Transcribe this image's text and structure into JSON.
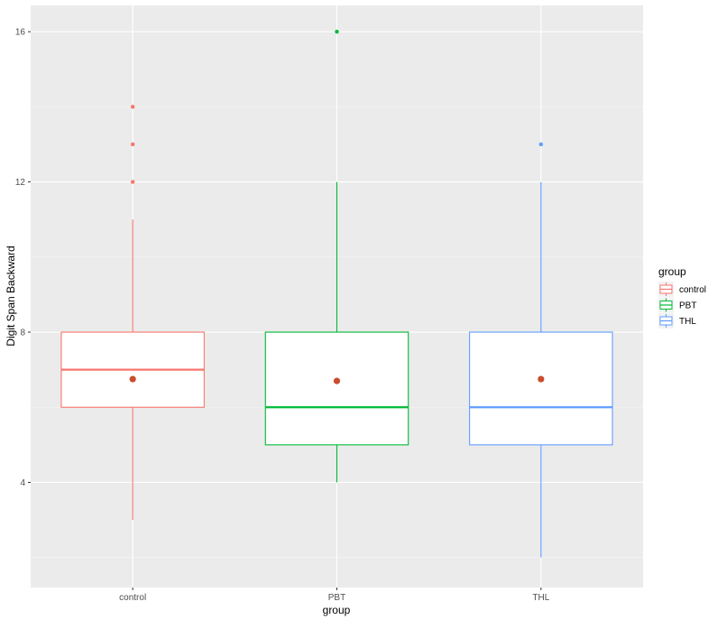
{
  "chart_data": {
    "type": "boxplot",
    "xlabel": "group",
    "ylabel": "Digit Span Backward",
    "ylim": [
      1.2,
      16.7
    ],
    "yticks": [
      4,
      8,
      12,
      16
    ],
    "categories": [
      "control",
      "PBT",
      "THL"
    ],
    "groups": [
      {
        "name": "control",
        "color": "#F8766D",
        "whisker_low": 3,
        "q1": 6,
        "median": 7,
        "q3": 8,
        "whisker_high": 11,
        "mean": 6.75,
        "outliers": [
          12,
          13,
          14
        ]
      },
      {
        "name": "PBT",
        "color": "#00BA38",
        "whisker_low": 4,
        "q1": 5,
        "median": 6,
        "q3": 8,
        "whisker_high": 12,
        "mean": 6.7,
        "outliers": [
          16
        ]
      },
      {
        "name": "THL",
        "color": "#619CFF",
        "whisker_low": 2,
        "q1": 5,
        "median": 6,
        "q3": 8,
        "whisker_high": 12,
        "mean": 6.75,
        "outliers": [
          13
        ]
      }
    ],
    "mean_color": "#CB4B2C",
    "panel_background": "#EBEBEB",
    "grid": true,
    "legend": {
      "title": "group",
      "position": "right",
      "entries": [
        "control",
        "PBT",
        "THL"
      ]
    }
  }
}
